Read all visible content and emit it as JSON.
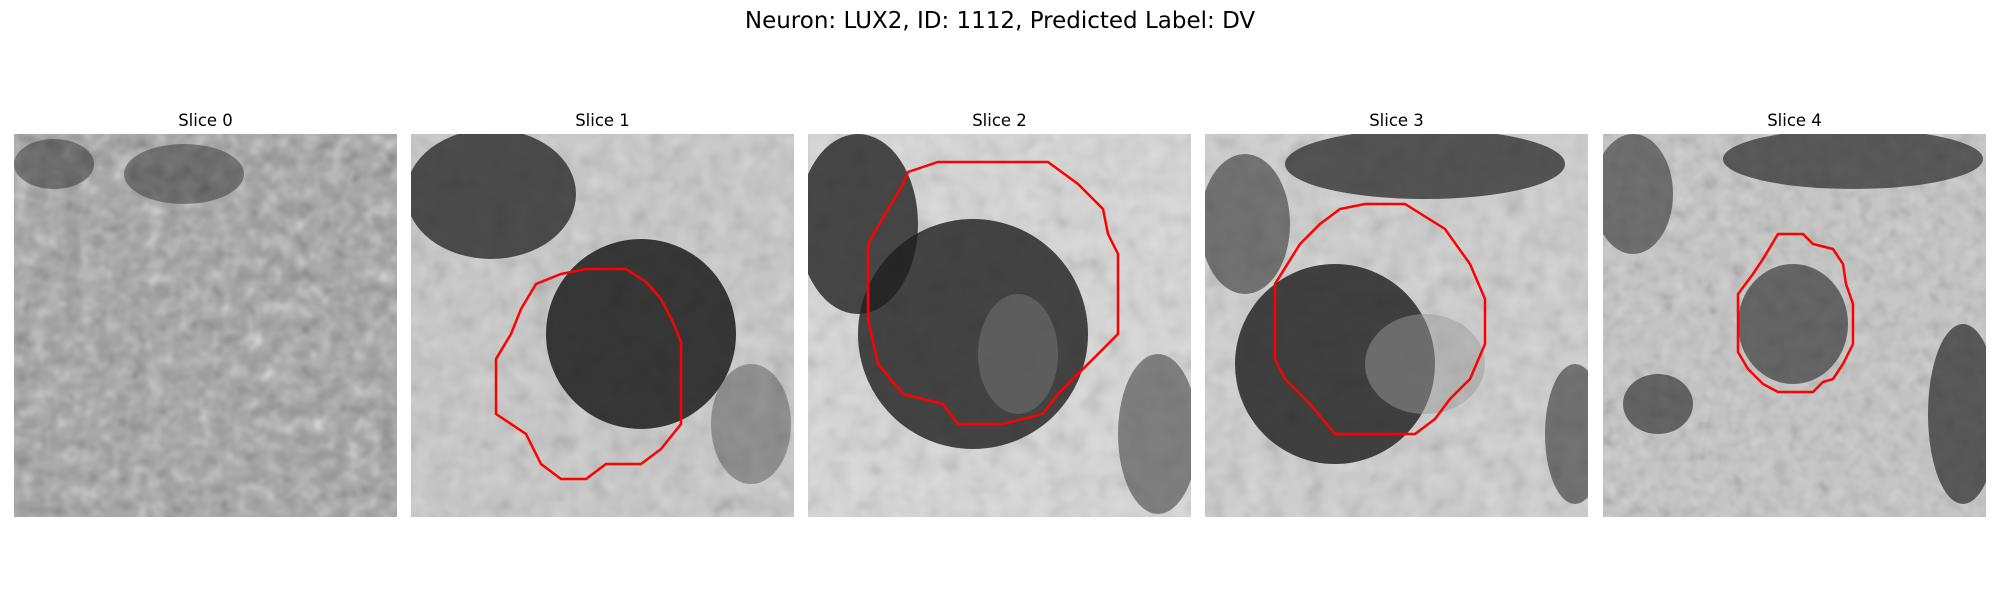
{
  "figure": {
    "title": "Neuron: LUX2, ID: 1112, Predicted Label: DV"
  },
  "panels": [
    {
      "title": "Slice 0",
      "has_contour": false
    },
    {
      "title": "Slice 1",
      "has_contour": true
    },
    {
      "title": "Slice 2",
      "has_contour": true
    },
    {
      "title": "Slice 3",
      "has_contour": true
    },
    {
      "title": "Slice 4",
      "has_contour": true
    }
  ],
  "colors": {
    "contour": "#ff0000",
    "background": "#ffffff"
  }
}
